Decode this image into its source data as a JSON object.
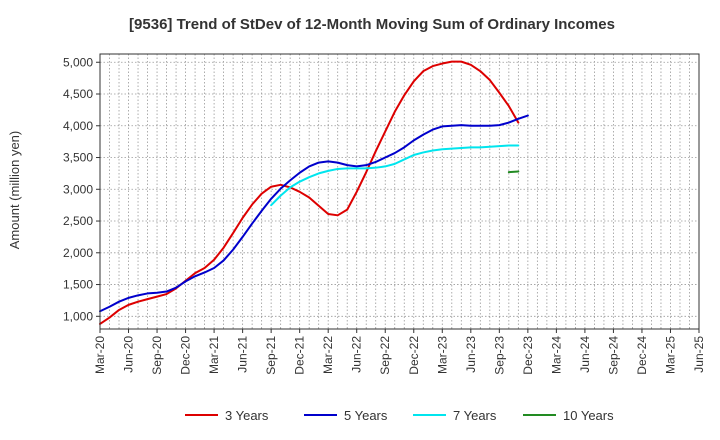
{
  "chart_data": {
    "type": "line",
    "title": "[9536]  Trend of StDev of 12-Month Moving Sum of Ordinary Incomes",
    "xlabel": "",
    "ylabel": "Amount (million yen)",
    "x_categories": [
      "Mar-20",
      "Jun-20",
      "Sep-20",
      "Dec-20",
      "Mar-21",
      "Jun-21",
      "Sep-21",
      "Dec-21",
      "Mar-22",
      "Jun-22",
      "Sep-22",
      "Dec-22",
      "Mar-23",
      "Jun-23",
      "Sep-23",
      "Dec-23",
      "Mar-24",
      "Jun-24",
      "Sep-24",
      "Dec-24",
      "Mar-25",
      "Jun-25"
    ],
    "y_ticks": [
      1000,
      1500,
      2000,
      2500,
      3000,
      3500,
      4000,
      4500,
      5000
    ],
    "y_tick_labels": [
      "1,000",
      "1,500",
      "2,000",
      "2,500",
      "3,000",
      "3,500",
      "4,000",
      "4,500",
      "5,000"
    ],
    "ylim": [
      800,
      5130
    ],
    "grid": true,
    "legend_position": "bottom",
    "series": [
      {
        "name": "3 Years",
        "color": "#dd0000",
        "start_index": 0,
        "values": [
          880,
          980,
          1100,
          1180,
          1230,
          1270,
          1310,
          1350,
          1440,
          1560,
          1680,
          1760,
          1890,
          2080,
          2310,
          2550,
          2760,
          2930,
          3040,
          3070,
          3030,
          2960,
          2870,
          2740,
          2610,
          2590,
          2680,
          2960,
          3270,
          3600,
          3910,
          4220,
          4480,
          4700,
          4860,
          4940,
          4980,
          5010,
          5010,
          4960,
          4860,
          4720,
          4520,
          4310,
          4050
        ]
      },
      {
        "name": "5 Years",
        "color": "#0000cc",
        "start_index": 0,
        "values": [
          1080,
          1150,
          1230,
          1290,
          1330,
          1360,
          1370,
          1390,
          1450,
          1550,
          1630,
          1690,
          1760,
          1880,
          2050,
          2250,
          2460,
          2660,
          2850,
          3010,
          3140,
          3260,
          3360,
          3420,
          3440,
          3420,
          3380,
          3360,
          3380,
          3430,
          3500,
          3570,
          3660,
          3770,
          3860,
          3940,
          3990,
          4000,
          4010,
          4000,
          4000,
          4000,
          4010,
          4050,
          4110,
          4160
        ]
      },
      {
        "name": "7 Years",
        "color": "#00e5ee",
        "start_index": 18,
        "values": [
          2750,
          2900,
          3030,
          3120,
          3190,
          3250,
          3290,
          3320,
          3330,
          3330,
          3330,
          3340,
          3360,
          3400,
          3470,
          3540,
          3580,
          3610,
          3630,
          3640,
          3650,
          3660,
          3660,
          3670,
          3680,
          3690,
          3690
        ]
      },
      {
        "name": "10 Years",
        "color": "#228b22",
        "start_index": 43,
        "values": [
          3270,
          3280
        ]
      }
    ]
  }
}
